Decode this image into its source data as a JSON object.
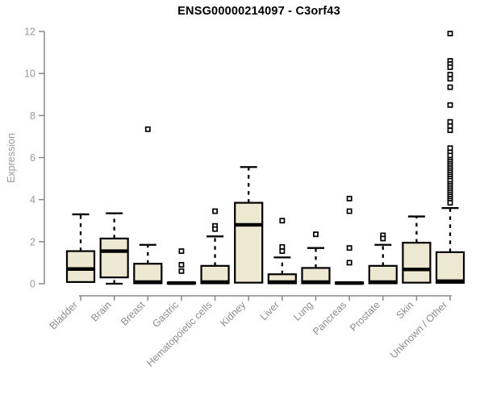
{
  "window": {
    "background": "#ffffff"
  },
  "chart_data": {
    "type": "boxplot",
    "title": "ENSG00000214097 - C3orf43",
    "ylabel": "Expression",
    "xlabel": "",
    "ylim": [
      0,
      12
    ],
    "yticks": [
      0,
      2,
      4,
      6,
      8,
      10,
      12
    ],
    "grid": false,
    "legend": "none",
    "categories": [
      "Bladder",
      "Brain",
      "Breast",
      "Gastric",
      "Hematopoietic cells",
      "Kidney",
      "Liver",
      "Lung",
      "Pancreas",
      "Prostate",
      "Skin",
      "Unknown / Other"
    ],
    "boxes": [
      {
        "label": "Bladder",
        "whislo": 0.08,
        "q1": 0.08,
        "med": 0.7,
        "q3": 1.55,
        "whishi": 3.3,
        "outliers": []
      },
      {
        "label": "Brain",
        "whislo": 0.0,
        "q1": 0.3,
        "med": 1.55,
        "q3": 2.15,
        "whishi": 3.35,
        "outliers": []
      },
      {
        "label": "Breast",
        "whislo": 0.0,
        "q1": 0.02,
        "med": 0.08,
        "q3": 0.95,
        "whishi": 1.85,
        "outliers": [
          7.35
        ]
      },
      {
        "label": "Gastric",
        "whislo": 0.0,
        "q1": 0.0,
        "med": 0.03,
        "q3": 0.06,
        "whishi": 0.1,
        "outliers": [
          1.55,
          0.9,
          0.6
        ]
      },
      {
        "label": "Hematopoietic cells",
        "whislo": 0.0,
        "q1": 0.02,
        "med": 0.08,
        "q3": 0.85,
        "whishi": 2.25,
        "outliers": [
          3.45,
          2.75,
          2.6
        ]
      },
      {
        "label": "Kidney",
        "whislo": 0.05,
        "q1": 0.05,
        "med": 2.8,
        "q3": 3.85,
        "whishi": 5.55,
        "outliers": []
      },
      {
        "label": "Liver",
        "whislo": 0.0,
        "q1": 0.02,
        "med": 0.08,
        "q3": 0.45,
        "whishi": 1.25,
        "outliers": [
          3.0,
          1.75,
          1.55
        ]
      },
      {
        "label": "Lung",
        "whislo": 0.0,
        "q1": 0.02,
        "med": 0.08,
        "q3": 0.75,
        "whishi": 1.7,
        "outliers": [
          2.35
        ]
      },
      {
        "label": "Pancreas",
        "whislo": 0.0,
        "q1": 0.0,
        "med": 0.03,
        "q3": 0.06,
        "whishi": 0.1,
        "outliers": [
          4.05,
          3.45,
          1.7,
          1.0
        ]
      },
      {
        "label": "Prostate",
        "whislo": 0.0,
        "q1": 0.02,
        "med": 0.08,
        "q3": 0.85,
        "whishi": 1.85,
        "outliers": [
          2.3,
          2.15
        ]
      },
      {
        "label": "Skin",
        "whislo": 0.05,
        "q1": 0.05,
        "med": 0.68,
        "q3": 1.95,
        "whishi": 3.2,
        "outliers": []
      },
      {
        "label": "Unknown / Other",
        "whislo": 0.0,
        "q1": 0.04,
        "med": 0.12,
        "q3": 1.5,
        "whishi": 3.6,
        "outliers": [
          11.9,
          10.6,
          10.45,
          10.3,
          9.95,
          9.75,
          9.35,
          8.5,
          7.7,
          7.5,
          7.3,
          6.45,
          6.25,
          6.1,
          5.9,
          5.8,
          5.7,
          5.6,
          5.5,
          5.4,
          5.3,
          5.2,
          5.1,
          5.0,
          4.9,
          4.75,
          4.65,
          4.55,
          4.45,
          4.35,
          4.25,
          4.15,
          4.05,
          3.95,
          3.85
        ]
      }
    ]
  },
  "colors": {
    "box_fill": "#EDE8D1",
    "box_stroke": "#000000",
    "median": "#000000",
    "whisker": "#000000",
    "outlier_stroke": "#000000",
    "outlier_fill": "#ffffff",
    "axis_line": "#888888",
    "tick_label": "#999999",
    "category_label": "#8c8c8c",
    "title": "#000000"
  }
}
